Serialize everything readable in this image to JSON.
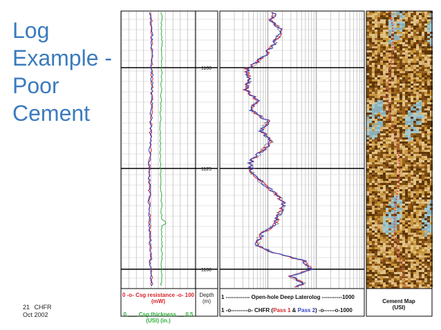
{
  "slide": {
    "title_lines": [
      "Log",
      "Example -",
      "Poor",
      "Cement"
    ],
    "footer_code": "21",
    "footer_label": "CHFR",
    "footer_date": "Oct 2002"
  },
  "colors": {
    "title": "#3b7bbf",
    "pass1": "#d8232a",
    "pass2": "#2e3fc4",
    "thickness": "#2fae3b",
    "laterolog": "#555555"
  },
  "tracks": {
    "left": {
      "resistance_label": "0 -o- Csg resistance -o- 100",
      "resistance_unit": "(mW)",
      "thickness_label": "0 ___ Csg thickness __ 0.5",
      "thickness_unit": "(USI) (in.)"
    },
    "depth": {
      "label": "Depth",
      "unit": "(m)",
      "ticks": [
        "1100",
        "1125",
        "1160"
      ]
    },
    "resistivity": {
      "laterolog_label": "1 ------------- Open-hole Deep Laterolog -----------1000",
      "chfr_prefix": "1 -o---------o- CHFR (",
      "pass1_label": "Pass 1",
      "amp": " & ",
      "pass2_label": "Pass 2",
      "chfr_suffix": ") -o------o-1000"
    },
    "cement_map": {
      "label": "Cement Map",
      "unit": "(USI)"
    }
  }
}
